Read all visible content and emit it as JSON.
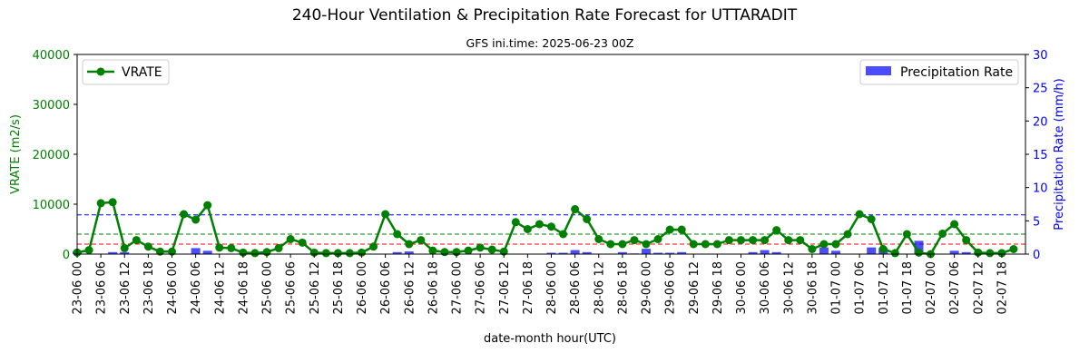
{
  "chart_data": {
    "type": "line",
    "title": "240-Hour Ventilation & Precipitation Rate Forecast for UTTARADIT",
    "subtitle": "GFS ini.time: 2025-06-23 00Z",
    "xlabel": "date-month hour(UTC)",
    "ylabel_left": "VRATE (m2/s)",
    "ylabel_right": "Precipitation Rate (mm/h)",
    "ylim_left": [
      0,
      40000
    ],
    "ylim_right": [
      0,
      30
    ],
    "yticks_left": [
      "0",
      "10000",
      "20000",
      "30000",
      "40000"
    ],
    "yticks_right": [
      "0",
      "5",
      "10",
      "15",
      "20",
      "25",
      "30"
    ],
    "x_ticks": [
      "23-06 00",
      "23-06 06",
      "23-06 12",
      "23-06 18",
      "24-06 00",
      "24-06 06",
      "24-06 12",
      "24-06 18",
      "25-06 00",
      "25-06 06",
      "25-06 12",
      "25-06 18",
      "26-06 00",
      "26-06 06",
      "26-06 12",
      "26-06 18",
      "27-06 00",
      "27-06 06",
      "27-06 12",
      "27-06 18",
      "28-06 00",
      "28-06 06",
      "28-06 12",
      "28-06 18",
      "29-06 00",
      "29-06 06",
      "29-06 12",
      "29-06 18",
      "30-06 00",
      "30-06 06",
      "30-06 12",
      "30-06 18",
      "01-07 00",
      "01-07 06",
      "01-07 12",
      "01-07 18",
      "02-07 00",
      "02-07 06",
      "02-07 12",
      "02-07 18"
    ],
    "x_step_hours": 3,
    "series": [
      {
        "name": "VRATE",
        "axis": "left",
        "color": "#008000",
        "values": [
          300,
          800,
          10200,
          10400,
          1200,
          2800,
          1500,
          500,
          500,
          8000,
          6900,
          9800,
          1300,
          1200,
          300,
          200,
          400,
          1200,
          3000,
          2300,
          300,
          200,
          200,
          200,
          300,
          1500,
          8000,
          4000,
          2000,
          2800,
          700,
          400,
          400,
          700,
          1300,
          900,
          500,
          6400,
          5000,
          6000,
          5500,
          4000,
          9000,
          7000,
          3000,
          2000,
          2000,
          2800,
          2000,
          3000,
          4900,
          4900,
          2000,
          2000,
          2000,
          2800,
          2800,
          2800,
          2800,
          4800,
          2800,
          2800,
          1000,
          2000,
          2000,
          4000,
          8000,
          7000,
          1000,
          200,
          4000,
          300,
          0,
          4100,
          6000,
          2800,
          300,
          200,
          200,
          1000
        ]
      },
      {
        "name": "Precipitation Rate",
        "axis": "right",
        "type": "bar",
        "color": "#0000ff",
        "values": [
          0.4,
          0,
          0,
          0.3,
          0.3,
          0,
          0,
          0,
          0,
          0,
          0.9,
          0.5,
          0,
          0,
          0,
          0,
          0,
          0,
          0,
          0,
          0,
          0,
          0,
          0,
          0,
          0,
          0,
          0.3,
          0.4,
          0,
          0,
          0,
          0,
          0,
          0,
          0,
          0,
          0,
          0,
          0,
          0.2,
          0.2,
          0.6,
          0.3,
          0,
          0,
          0.3,
          0.1,
          0.8,
          0.2,
          0.2,
          0.3,
          0,
          0,
          0,
          0,
          0,
          0.3,
          0.6,
          0.3,
          0,
          0,
          0,
          1.0,
          0.5,
          0,
          0,
          1.0,
          0.9,
          0,
          0,
          2.0,
          0,
          0,
          0.5,
          0.3,
          0,
          0,
          0,
          0
        ]
      }
    ],
    "reference_lines": [
      {
        "axis": "right",
        "value": 5.9,
        "color": "#0000ff"
      },
      {
        "axis": "left",
        "value": 4000,
        "color": "#008000"
      },
      {
        "axis": "left",
        "value": 2000,
        "color": "#ff0000"
      }
    ],
    "legend": [
      {
        "label": "VRATE",
        "position": "top-left"
      },
      {
        "label": "Precipitation Rate",
        "position": "top-right"
      }
    ],
    "grid": false
  }
}
